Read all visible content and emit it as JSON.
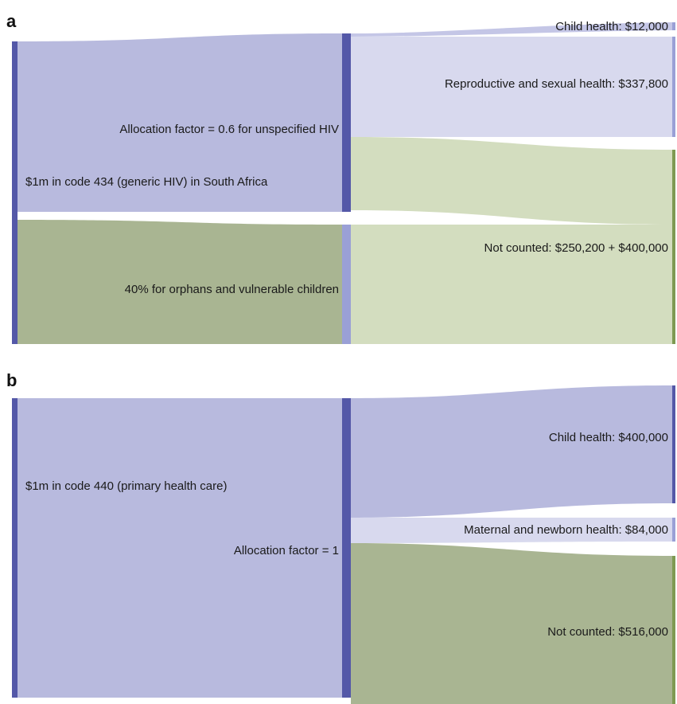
{
  "panels": [
    {
      "letter": "a",
      "source_label": "$1m in code 434 (generic HIV) in South Africa",
      "mid_labels": {
        "upper": "Allocation factor = 0.6 for unspecified HIV",
        "lower": "40% for orphans and vulnerable children"
      },
      "target_labels": {
        "child": "Child health: $12,000",
        "reproductive": "Reproductive and sexual health: $337,800",
        "not_counted": "Not counted: $250,200 + $400,000"
      },
      "flows": [
        {
          "from": "$1m in code 434 (generic HIV) in South Africa",
          "to": "Allocation factor = 0.6 for unspecified HIV",
          "share": 0.6
        },
        {
          "from": "$1m in code 434 (generic HIV) in South Africa",
          "to": "40% for orphans and vulnerable children",
          "share": 0.4
        },
        {
          "from": "Allocation factor = 0.6 for unspecified HIV",
          "to": "Child health: $12,000",
          "value": 12000
        },
        {
          "from": "Allocation factor = 0.6 for unspecified HIV",
          "to": "Reproductive and sexual health: $337,800",
          "value": 337800
        },
        {
          "from": "Allocation factor = 0.6 for unspecified HIV",
          "to": "Not counted: $250,200 + $400,000",
          "value": 250200
        },
        {
          "from": "40% for orphans and vulnerable children",
          "to": "Not counted: $250,200 + $400,000",
          "value": 400000
        }
      ]
    },
    {
      "letter": "b",
      "source_label": "$1m in code 440 (primary health care)",
      "mid_labels": {
        "upper": "Allocation factor = 1"
      },
      "target_labels": {
        "child": "Child health: $400,000",
        "maternal": "Maternal and newborn health: $84,000",
        "not_counted": "Not counted: $516,000"
      },
      "flows": [
        {
          "from": "$1m in code 440 (primary health care)",
          "to": "Allocation factor = 1",
          "share": 1
        },
        {
          "from": "Allocation factor = 1",
          "to": "Child health: $400,000",
          "value": 400000
        },
        {
          "from": "Allocation factor = 1",
          "to": "Maternal and newborn health: $84,000",
          "value": 84000
        },
        {
          "from": "Allocation factor = 1",
          "to": "Not counted: $516,000",
          "value": 516000
        }
      ]
    }
  ],
  "colors": {
    "purple_bar": "#5458a8",
    "purple_flow": "#b8bade",
    "purple_light": "#d8d9ee",
    "green_dark_flow": "#a9b592",
    "green_light_flow": "#d3ddbf",
    "green_bar": "#7e9a52",
    "mid_bar_light": "#9aa0d6"
  }
}
